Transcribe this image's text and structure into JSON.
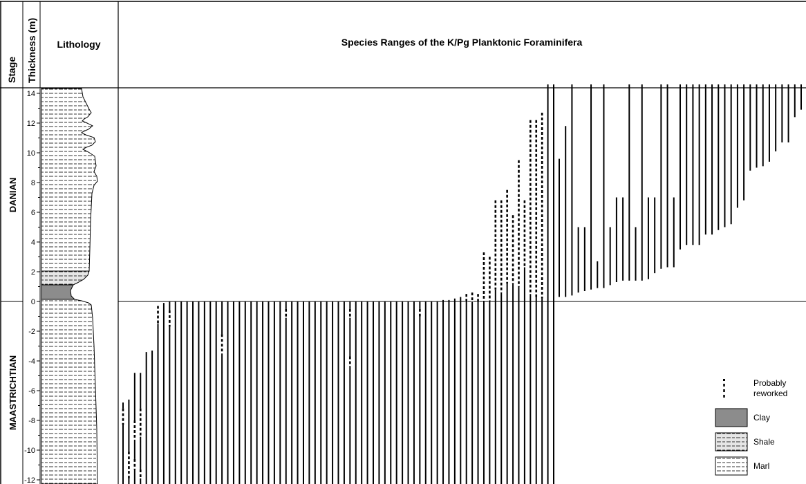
{
  "headers": {
    "stage": "Stage",
    "thickness": "Thickness (m)",
    "lithology": "Lithology",
    "title": "Species Ranges of the K/Pg Planktonic Foraminifera"
  },
  "stages": [
    "DANIAN",
    "MAASTRICHTIAN"
  ],
  "legend": {
    "reworked": [
      "Probably",
      "reworked"
    ],
    "clay": "Clay",
    "shale": "Shale",
    "marl": "Marl"
  },
  "colors": {
    "clay": "#8c8c8c",
    "shale_fill": "#e6e6e6",
    "line": "#000000"
  },
  "chart_data": {
    "type": "range-chart",
    "title": "Species Ranges of the K/Pg Planktonic Foraminifera",
    "ylabel": "Thickness (m)",
    "ylim": [
      -12.6,
      14.6
    ],
    "yticks": [
      14,
      12,
      10,
      8,
      6,
      4,
      2,
      0,
      -2,
      -4,
      -6,
      -8,
      -10,
      -12
    ],
    "boundary": 0,
    "lithology_units": [
      {
        "type": "Marl",
        "from": -12.6,
        "to": 0.2
      },
      {
        "type": "Clay",
        "from": 0.2,
        "to": 1.1
      },
      {
        "type": "Shale",
        "from": 1.1,
        "to": 2.1
      },
      {
        "type": "Marl",
        "from": 2.1,
        "to": 14.6
      }
    ],
    "maastrichtian_ranges": [
      {
        "base": -12.6,
        "top": -6.8,
        "dashed": [
          [
            -8.3,
            -7.2
          ]
        ]
      },
      {
        "base": -12.6,
        "top": -6.6,
        "dashed": [
          [
            -11.9,
            -10.1
          ]
        ]
      },
      {
        "base": -12.6,
        "top": -4.8,
        "dashed": [
          [
            -9.3,
            -8.0
          ],
          [
            -11.3,
            -10.6
          ]
        ]
      },
      {
        "base": -12.6,
        "top": -4.8,
        "dashed": [
          [
            -9.1,
            -7.2
          ],
          [
            -11.9,
            -11.3
          ]
        ]
      },
      {
        "base": -12.6,
        "top": -3.4
      },
      {
        "base": -12.6,
        "top": -3.3
      },
      {
        "base": -12.6,
        "top": -0.3,
        "dashed": [
          [
            -1.5,
            -0.3
          ]
        ]
      },
      {
        "base": -12.6,
        "top": -0.1
      },
      {
        "base": -12.6,
        "top": 0,
        "dashed": [
          [
            -1.7,
            -0.6
          ]
        ]
      },
      {
        "base": -12.6,
        "top": 0
      },
      {
        "base": -12.6,
        "top": 0
      },
      {
        "base": -12.6,
        "top": 0
      },
      {
        "base": -12.6,
        "top": 0
      },
      {
        "base": -12.6,
        "top": 0
      },
      {
        "base": -12.6,
        "top": 0
      },
      {
        "base": -12.6,
        "top": 0
      },
      {
        "base": -12.6,
        "top": 0
      },
      {
        "base": -12.6,
        "top": 0,
        "dashed": [
          [
            -3.5,
            -2.2
          ]
        ]
      },
      {
        "base": -12.6,
        "top": 0
      },
      {
        "base": -12.6,
        "top": 0
      },
      {
        "base": -12.6,
        "top": 0
      },
      {
        "base": -12.6,
        "top": 0
      },
      {
        "base": -12.6,
        "top": 0
      },
      {
        "base": -12.6,
        "top": 0
      },
      {
        "base": -12.6,
        "top": 0
      },
      {
        "base": -12.6,
        "top": 0
      },
      {
        "base": -12.6,
        "top": 0
      },
      {
        "base": -12.6,
        "top": 0
      },
      {
        "base": -12.6,
        "top": 0,
        "dashed": [
          [
            -1.1,
            -0.5
          ]
        ]
      },
      {
        "base": -12.6,
        "top": 0
      },
      {
        "base": -12.6,
        "top": 0
      },
      {
        "base": -12.6,
        "top": 0
      },
      {
        "base": -12.6,
        "top": 0
      },
      {
        "base": -12.6,
        "top": 0
      },
      {
        "base": -12.6,
        "top": 0
      },
      {
        "base": -12.6,
        "top": 0
      },
      {
        "base": -12.6,
        "top": 0
      },
      {
        "base": -12.6,
        "top": 0
      },
      {
        "base": -12.6,
        "top": 0
      },
      {
        "base": -12.6,
        "top": 0,
        "dashed": [
          [
            -1.1,
            -0.5
          ],
          [
            -4.4,
            -3.7
          ]
        ]
      },
      {
        "base": -12.6,
        "top": 0
      },
      {
        "base": -12.6,
        "top": 0
      },
      {
        "base": -12.6,
        "top": 0
      },
      {
        "base": -12.6,
        "top": 0
      },
      {
        "base": -12.6,
        "top": 0
      },
      {
        "base": -12.6,
        "top": 0
      },
      {
        "base": -12.6,
        "top": 0
      },
      {
        "base": -12.6,
        "top": 0
      },
      {
        "base": -12.6,
        "top": 0
      },
      {
        "base": -12.6,
        "top": 0
      },
      {
        "base": -12.6,
        "top": 0
      },
      {
        "base": -12.6,
        "top": 0,
        "dashed": [
          [
            -1.0,
            -0.5
          ]
        ]
      },
      {
        "base": -12.6,
        "top": 0
      },
      {
        "base": -12.6,
        "top": 0
      },
      {
        "base": -12.6,
        "top": 0
      },
      {
        "base": -12.6,
        "top": 0.1
      },
      {
        "base": -12.6,
        "top": 0.1
      },
      {
        "base": -12.6,
        "top": 0.2
      },
      {
        "base": -12.6,
        "top": 0.3
      },
      {
        "base": -12.6,
        "top": 0.5,
        "dashed": [
          [
            0,
            0.5
          ]
        ]
      },
      {
        "base": -12.6,
        "top": 0.6,
        "dashed": [
          [
            0,
            0.6
          ]
        ]
      },
      {
        "base": -12.6,
        "top": 0.5,
        "dashed": [
          [
            0,
            0.5
          ]
        ]
      },
      {
        "base": -12.6,
        "top": 3.3,
        "dashed": [
          [
            0,
            3.3
          ]
        ]
      },
      {
        "base": -12.6,
        "top": 3.0,
        "dashed": [
          [
            0,
            3.0
          ]
        ]
      },
      {
        "base": -12.6,
        "top": 6.8,
        "dashed": [
          [
            0.8,
            6.8
          ]
        ]
      },
      {
        "base": -12.6,
        "top": 6.8,
        "dashed": [
          [
            0.6,
            6.8
          ]
        ]
      },
      {
        "base": -12.6,
        "top": 7.5,
        "dashed": [
          [
            1.2,
            7.5
          ]
        ]
      },
      {
        "base": -12.6,
        "top": 5.8,
        "dashed": [
          [
            1.2,
            5.8
          ]
        ]
      },
      {
        "base": -12.6,
        "top": 9.5,
        "dashed": [
          [
            1.0,
            9.5
          ]
        ]
      },
      {
        "base": -12.6,
        "top": 6.8,
        "dashed": [
          [
            2.3,
            6.8
          ]
        ]
      },
      {
        "base": -12.6,
        "top": 12.2,
        "dashed": [
          [
            0.5,
            12.2
          ]
        ]
      },
      {
        "base": -12.6,
        "top": 12.2,
        "dashed": [
          [
            0.3,
            12.2
          ]
        ]
      },
      {
        "base": -12.6,
        "top": 12.7,
        "dashed": [
          [
            0.2,
            12.7
          ]
        ]
      },
      {
        "base": -12.6,
        "top": 14.6
      },
      {
        "base": -12.6,
        "top": 14.6
      }
    ],
    "danian_ranges": [
      {
        "base": 0.3,
        "top": 9.6
      },
      {
        "base": 0.3,
        "top": 11.8
      },
      {
        "base": 0.4,
        "top": 14.6
      },
      {
        "base": 0.6,
        "top": 5.0
      },
      {
        "base": 0.7,
        "top": 5.0
      },
      {
        "base": 0.8,
        "top": 14.6
      },
      {
        "base": 0.9,
        "top": 2.7
      },
      {
        "base": 0.9,
        "top": 14.6
      },
      {
        "base": 1.1,
        "top": 5.0
      },
      {
        "base": 1.3,
        "top": 7.0
      },
      {
        "base": 1.4,
        "top": 7.0
      },
      {
        "base": 1.4,
        "top": 14.6
      },
      {
        "base": 1.4,
        "top": 5.0
      },
      {
        "base": 1.4,
        "top": 14.6
      },
      {
        "base": 1.5,
        "top": 7.0
      },
      {
        "base": 1.9,
        "top": 7.0
      },
      {
        "base": 2.2,
        "top": 14.6
      },
      {
        "base": 2.3,
        "top": 14.6
      },
      {
        "base": 2.3,
        "top": 7.0
      },
      {
        "base": 3.5,
        "top": 14.6
      },
      {
        "base": 3.8,
        "top": 14.6
      },
      {
        "base": 3.8,
        "top": 14.6
      },
      {
        "base": 3.8,
        "top": 14.6
      },
      {
        "base": 4.5,
        "top": 14.6
      },
      {
        "base": 4.5,
        "top": 14.6
      },
      {
        "base": 4.8,
        "top": 14.6
      },
      {
        "base": 5.0,
        "top": 14.6
      },
      {
        "base": 5.2,
        "top": 14.6
      },
      {
        "base": 6.3,
        "top": 14.6
      },
      {
        "base": 6.8,
        "top": 14.6
      },
      {
        "base": 8.8,
        "top": 14.6
      },
      {
        "base": 9.0,
        "top": 14.6
      },
      {
        "base": 9.1,
        "top": 14.6
      },
      {
        "base": 9.4,
        "top": 14.6
      },
      {
        "base": 10.1,
        "top": 14.6
      },
      {
        "base": 10.7,
        "top": 14.6
      },
      {
        "base": 10.7,
        "top": 14.6
      },
      {
        "base": 12.4,
        "top": 14.6
      },
      {
        "base": 12.9,
        "top": 14.6
      }
    ]
  }
}
